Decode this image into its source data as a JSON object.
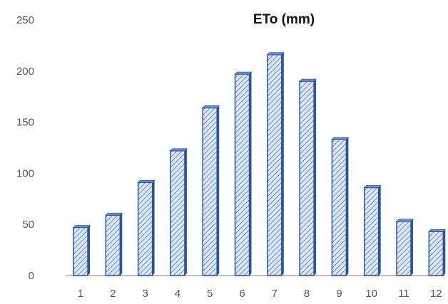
{
  "chart_data": {
    "type": "bar",
    "title": "ETo (mm)",
    "xlabel": "",
    "ylabel": "",
    "categories": [
      "1",
      "2",
      "3",
      "4",
      "5",
      "6",
      "7",
      "8",
      "9",
      "10",
      "11",
      "12"
    ],
    "values": [
      47,
      59,
      91,
      122,
      164,
      197,
      216,
      190,
      133,
      86,
      53,
      43
    ],
    "ylim": [
      0,
      250
    ],
    "yticks": [
      "0",
      "50",
      "100",
      "150",
      "200",
      "250"
    ],
    "grid": false,
    "legend": "none",
    "bar_fill": "#dce8f7",
    "bar_hatch": "#4a72b8",
    "bar_edge": "#2f5597",
    "bar_top": "#6e93cf",
    "axis_color": "#bfbfbf"
  }
}
